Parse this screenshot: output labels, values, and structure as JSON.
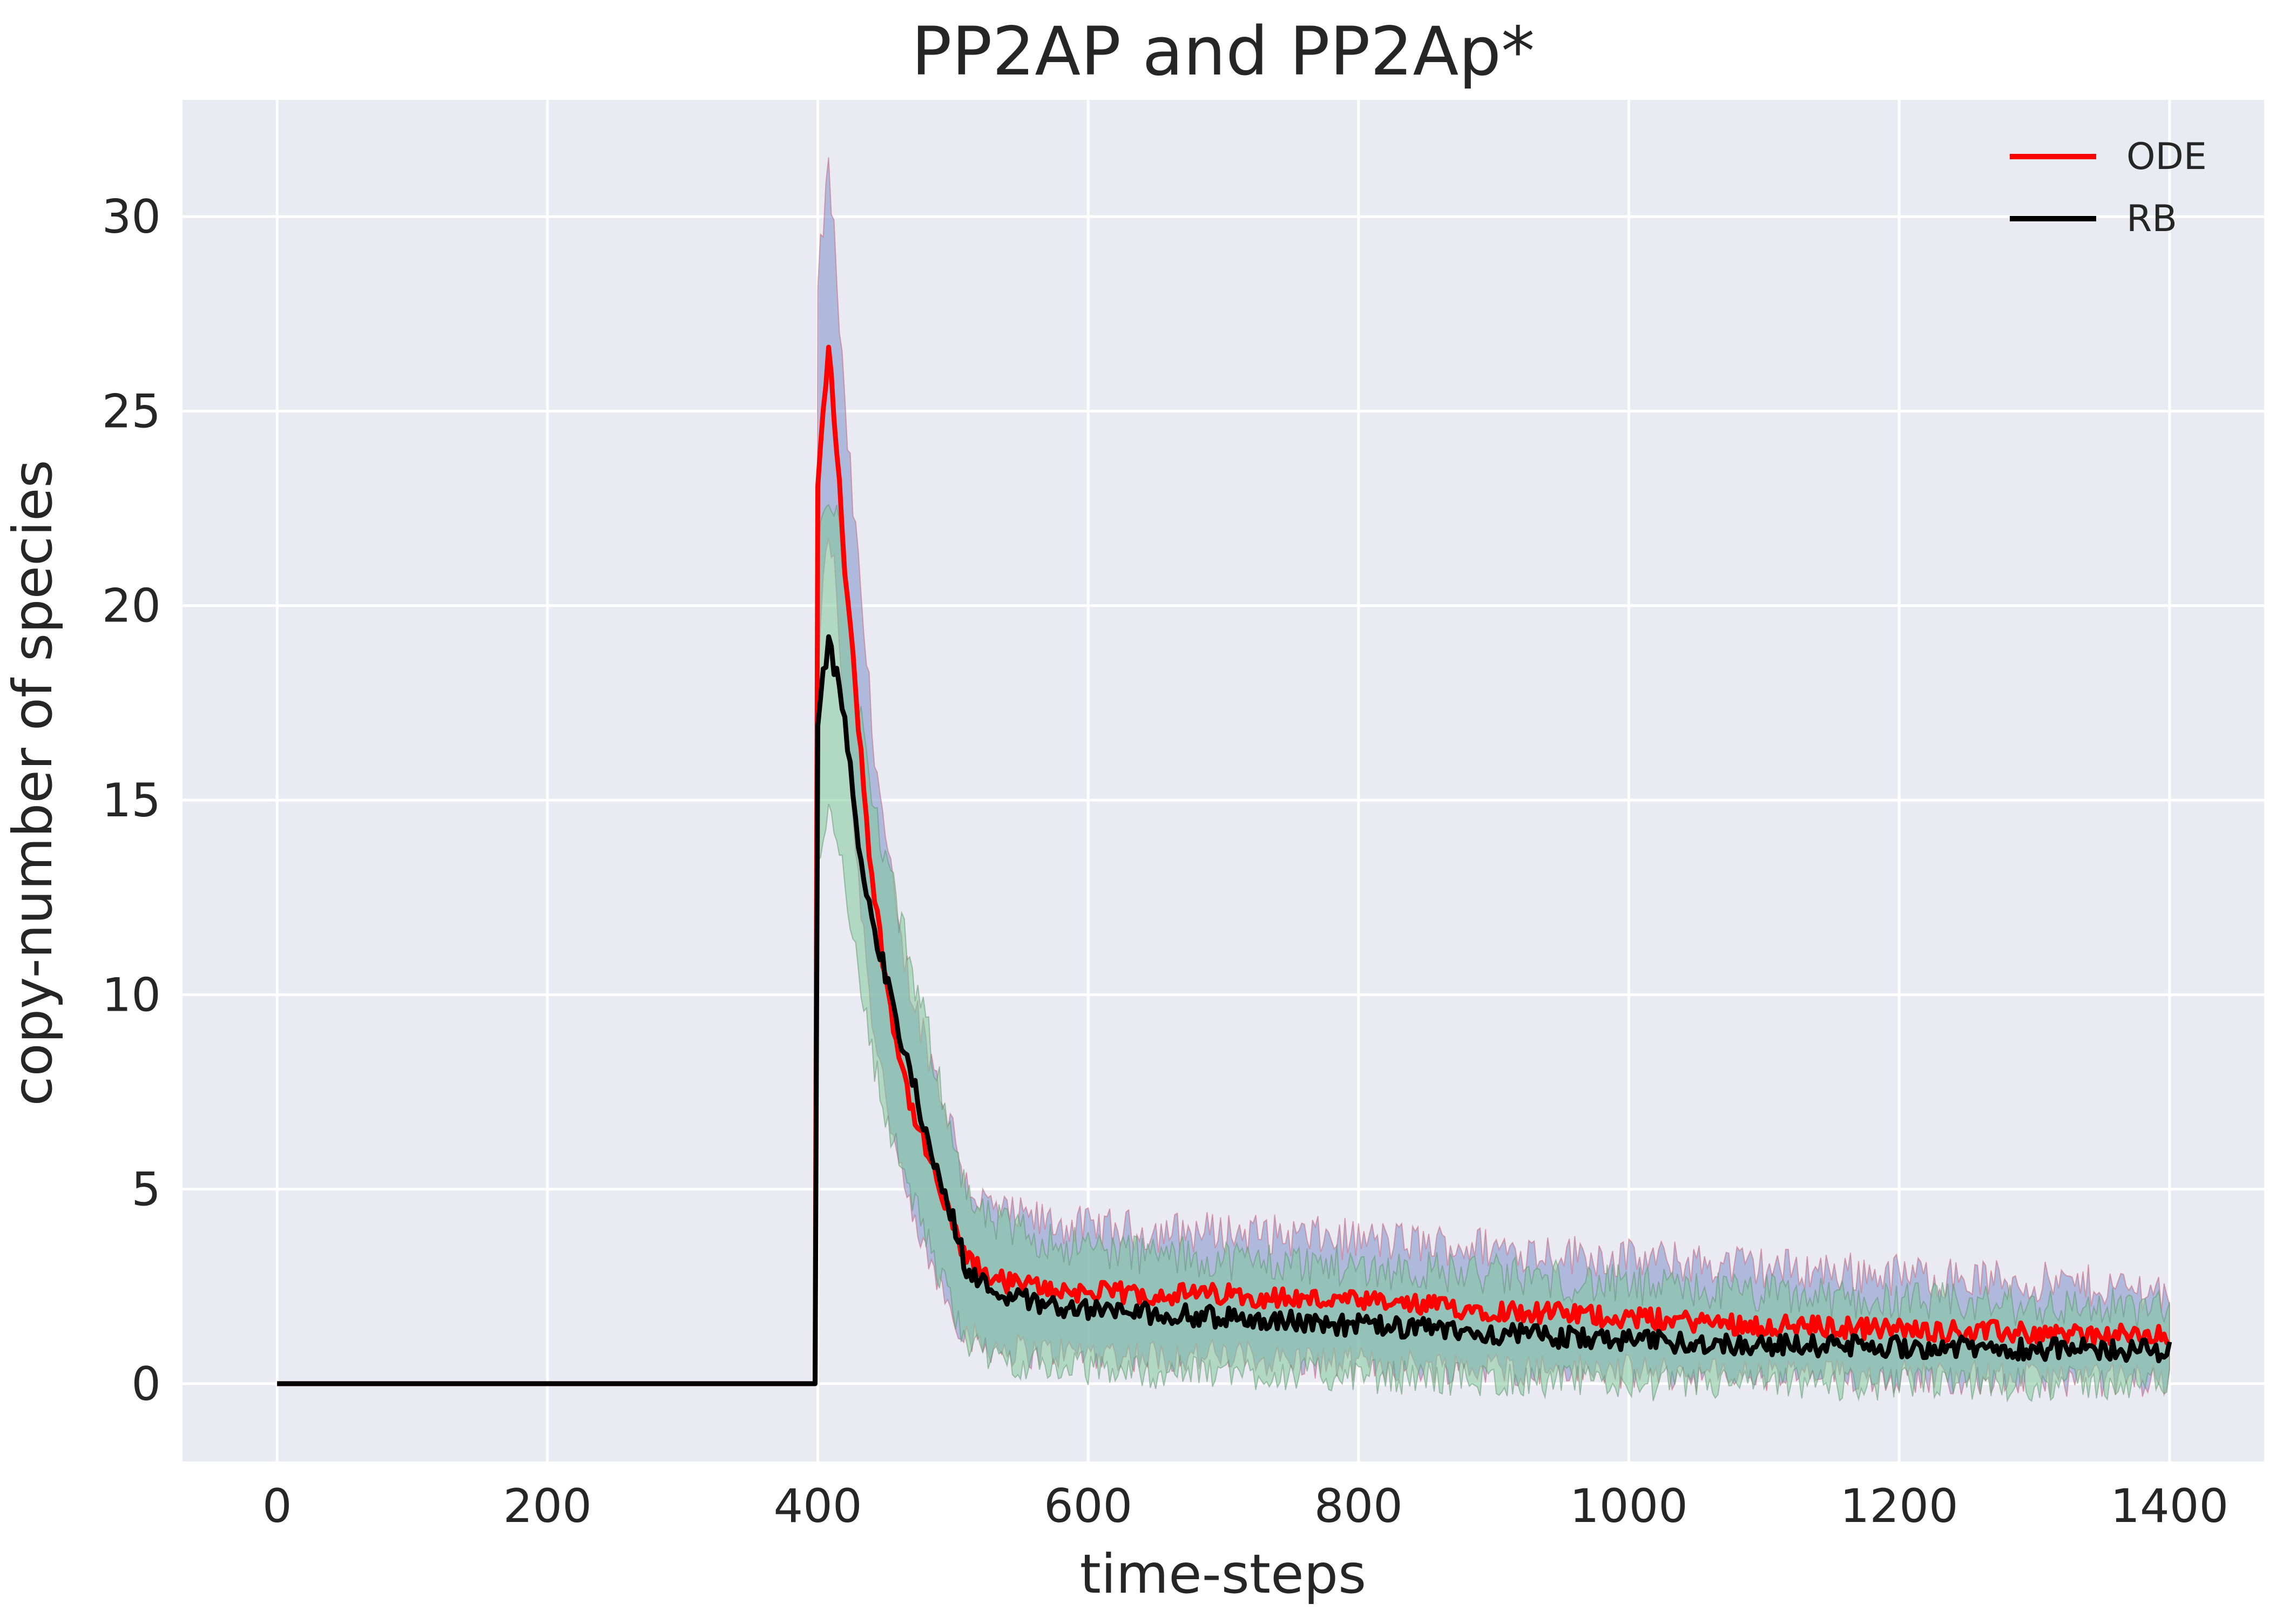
{
  "chart_data": {
    "type": "line",
    "title": "PP2AP and PP2Ap*",
    "xlabel": "time-steps",
    "ylabel": "copy-number of species",
    "xlim": [
      -70,
      1470
    ],
    "ylim": [
      -2,
      33
    ],
    "xticks": [
      0,
      200,
      400,
      600,
      800,
      1000,
      1200,
      1400
    ],
    "yticks": [
      0,
      5,
      10,
      15,
      20,
      25,
      30
    ],
    "grid": true,
    "legend_position": "top-right",
    "colors": {
      "background": "#eaeaf2",
      "ODE": "#ff0000",
      "RB": "#000000",
      "band_ODE": "#7b8fc9",
      "band_RB": "#7fc99a"
    },
    "series": [
      {
        "name": "ODE",
        "x": [
          0,
          399,
          400,
          403,
          408,
          412,
          420,
          430,
          440,
          450,
          460,
          470,
          480,
          490,
          500,
          510,
          520,
          540,
          560,
          580,
          600,
          650,
          700,
          800,
          900,
          1000,
          1100,
          1200,
          1300,
          1400
        ],
        "y": [
          0,
          0,
          23.0,
          24.5,
          26.6,
          25.0,
          21.0,
          17.0,
          13.0,
          10.5,
          8.5,
          7.0,
          6.0,
          5.0,
          4.0,
          3.2,
          2.9,
          2.6,
          2.5,
          2.4,
          2.35,
          2.3,
          2.3,
          2.1,
          1.9,
          1.7,
          1.5,
          1.4,
          1.3,
          1.2
        ],
        "band_low": [
          0,
          0,
          18.0,
          20.0,
          22.0,
          21.0,
          17.0,
          13.0,
          9.5,
          7.5,
          5.5,
          4.2,
          3.3,
          2.6,
          1.8,
          1.3,
          1.0,
          0.9,
          0.8,
          0.8,
          0.8,
          0.7,
          0.7,
          0.5,
          0.4,
          0.3,
          0.2,
          0.2,
          0.1,
          0.1
        ],
        "band_high": [
          0,
          0,
          28.0,
          29.5,
          31.2,
          29.5,
          25.0,
          21.0,
          17.0,
          14.0,
          11.5,
          10.0,
          8.8,
          7.6,
          6.5,
          5.2,
          4.7,
          4.3,
          4.2,
          4.1,
          4.0,
          3.9,
          3.9,
          3.7,
          3.5,
          3.2,
          3.0,
          2.8,
          2.6,
          2.4
        ]
      },
      {
        "name": "RB",
        "x": [
          0,
          399,
          400,
          403,
          408,
          412,
          420,
          430,
          440,
          450,
          460,
          470,
          480,
          490,
          500,
          510,
          520,
          540,
          560,
          580,
          600,
          650,
          700,
          800,
          900,
          1000,
          1100,
          1200,
          1300,
          1400
        ],
        "y": [
          0,
          0,
          17.0,
          18.0,
          19.0,
          18.5,
          17.0,
          14.0,
          12.0,
          10.5,
          9.0,
          7.8,
          6.5,
          5.2,
          4.2,
          3.0,
          2.6,
          2.3,
          2.1,
          2.0,
          1.9,
          1.8,
          1.7,
          1.5,
          1.3,
          1.1,
          1.0,
          0.95,
          0.9,
          0.85
        ],
        "band_low": [
          0,
          0,
          13.0,
          14.0,
          15.0,
          14.5,
          13.0,
          10.5,
          8.5,
          7.0,
          5.8,
          4.8,
          3.8,
          2.8,
          2.0,
          1.2,
          0.8,
          0.6,
          0.5,
          0.4,
          0.4,
          0.3,
          0.3,
          0.2,
          0.1,
          0.0,
          0.0,
          0.0,
          0.0,
          0.0
        ],
        "band_high": [
          0,
          0,
          21.0,
          22.0,
          23.0,
          22.5,
          21.0,
          17.5,
          15.0,
          13.5,
          12.0,
          10.5,
          9.2,
          7.8,
          6.5,
          4.8,
          4.3,
          4.0,
          3.8,
          3.6,
          3.5,
          3.3,
          3.2,
          3.0,
          2.8,
          2.5,
          2.3,
          2.1,
          2.0,
          1.9
        ]
      }
    ]
  }
}
